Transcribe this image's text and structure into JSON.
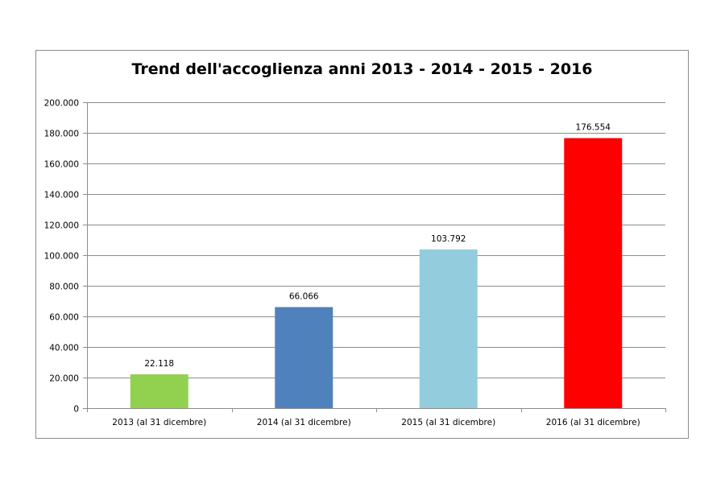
{
  "chart_data": {
    "type": "bar",
    "title": "Trend dell'accoglienza anni 2013 - 2014 - 2015 - 2016",
    "categories": [
      "2013 (al 31 dicembre)",
      "2014 (al 31 dicembre)",
      "2015 (al 31 dicembre)",
      "2016 (al 31 dicembre)"
    ],
    "values": [
      22118,
      66066,
      103792,
      176554
    ],
    "data_labels": [
      "22.118",
      "66.066",
      "103.792",
      "176.554"
    ],
    "colors": [
      "#92d050",
      "#4f81bd",
      "#93cddd",
      "#ff0000"
    ],
    "yticks": [
      0,
      20000,
      40000,
      60000,
      80000,
      100000,
      120000,
      140000,
      160000,
      180000,
      200000
    ],
    "ytick_labels": [
      "0",
      "20.000",
      "40.000",
      "60.000",
      "80.000",
      "100.000",
      "120.000",
      "140.000",
      "160.000",
      "180.000",
      "200.000"
    ],
    "ylim": [
      0,
      200000
    ],
    "xlabel": "",
    "ylabel": "",
    "grid": true,
    "legend": "none"
  }
}
